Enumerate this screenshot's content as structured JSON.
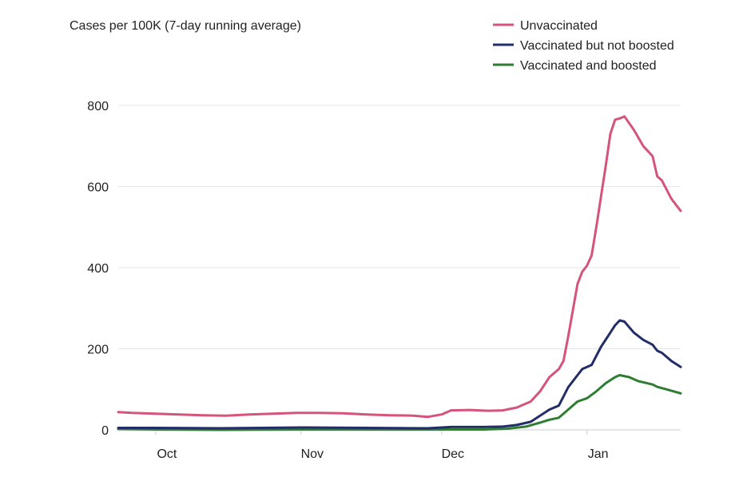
{
  "chart_data": {
    "type": "line",
    "title": "Cases per 100K (7-day running average)",
    "xlabel": "",
    "ylabel": "",
    "x_start": "2021-09-23",
    "x_end": "2022-01-21",
    "xticks": [
      {
        "label": "Oct",
        "date": "2021-10-01"
      },
      {
        "label": "Nov",
        "date": "2021-11-01"
      },
      {
        "label": "Dec",
        "date": "2021-12-01"
      },
      {
        "label": "Jan",
        "date": "2022-01-01"
      }
    ],
    "ylim": [
      0,
      800
    ],
    "yticks": [
      0,
      200,
      400,
      600,
      800
    ],
    "grid": "horizontal",
    "legend_position": "top-right",
    "series": [
      {
        "name": "Unvaccinated",
        "color": "#d4547c",
        "points": [
          [
            "2021-09-23",
            44
          ],
          [
            "2021-09-26",
            42
          ],
          [
            "2021-10-01",
            40
          ],
          [
            "2021-10-06",
            38
          ],
          [
            "2021-10-11",
            36
          ],
          [
            "2021-10-16",
            35
          ],
          [
            "2021-10-21",
            38
          ],
          [
            "2021-10-26",
            40
          ],
          [
            "2021-10-31",
            42
          ],
          [
            "2021-11-05",
            42
          ],
          [
            "2021-11-10",
            41
          ],
          [
            "2021-11-15",
            38
          ],
          [
            "2021-11-20",
            36
          ],
          [
            "2021-11-25",
            35
          ],
          [
            "2021-11-28",
            32
          ],
          [
            "2021-12-01",
            38
          ],
          [
            "2021-12-03",
            48
          ],
          [
            "2021-12-07",
            49
          ],
          [
            "2021-12-11",
            47
          ],
          [
            "2021-12-14",
            48
          ],
          [
            "2021-12-17",
            55
          ],
          [
            "2021-12-20",
            70
          ],
          [
            "2021-12-22",
            95
          ],
          [
            "2021-12-24",
            130
          ],
          [
            "2021-12-26",
            150
          ],
          [
            "2021-12-27",
            170
          ],
          [
            "2021-12-28",
            230
          ],
          [
            "2021-12-30",
            360
          ],
          [
            "2021-12-31",
            390
          ],
          [
            "2022-01-01",
            405
          ],
          [
            "2022-01-02",
            430
          ],
          [
            "2022-01-03",
            500
          ],
          [
            "2022-01-05",
            650
          ],
          [
            "2022-01-06",
            730
          ],
          [
            "2022-01-07",
            765
          ],
          [
            "2022-01-08",
            768
          ],
          [
            "2022-01-09",
            773
          ],
          [
            "2022-01-11",
            740
          ],
          [
            "2022-01-13",
            700
          ],
          [
            "2022-01-15",
            675
          ],
          [
            "2022-01-16",
            625
          ],
          [
            "2022-01-17",
            615
          ],
          [
            "2022-01-19",
            570
          ],
          [
            "2022-01-21",
            540
          ]
        ]
      },
      {
        "name": "Vaccinated but not boosted",
        "color": "#232e68",
        "points": [
          [
            "2021-09-23",
            5
          ],
          [
            "2021-10-01",
            5
          ],
          [
            "2021-10-15",
            4
          ],
          [
            "2021-11-01",
            6
          ],
          [
            "2021-11-15",
            5
          ],
          [
            "2021-11-28",
            4
          ],
          [
            "2021-12-03",
            7
          ],
          [
            "2021-12-10",
            7
          ],
          [
            "2021-12-14",
            8
          ],
          [
            "2021-12-17",
            12
          ],
          [
            "2021-12-20",
            20
          ],
          [
            "2021-12-22",
            35
          ],
          [
            "2021-12-24",
            50
          ],
          [
            "2021-12-26",
            60
          ],
          [
            "2021-12-28",
            105
          ],
          [
            "2021-12-30",
            135
          ],
          [
            "2021-12-31",
            150
          ],
          [
            "2022-01-02",
            160
          ],
          [
            "2022-01-04",
            205
          ],
          [
            "2022-01-06",
            240
          ],
          [
            "2022-01-07",
            258
          ],
          [
            "2022-01-08",
            270
          ],
          [
            "2022-01-09",
            267
          ],
          [
            "2022-01-11",
            240
          ],
          [
            "2022-01-13",
            222
          ],
          [
            "2022-01-15",
            210
          ],
          [
            "2022-01-16",
            195
          ],
          [
            "2022-01-17",
            190
          ],
          [
            "2022-01-19",
            170
          ],
          [
            "2022-01-21",
            155
          ]
        ]
      },
      {
        "name": "Vaccinated and boosted",
        "color": "#2e7d32",
        "points": [
          [
            "2021-09-23",
            2
          ],
          [
            "2021-10-01",
            1
          ],
          [
            "2021-10-15",
            0
          ],
          [
            "2021-11-01",
            1
          ],
          [
            "2021-11-15",
            1
          ],
          [
            "2021-12-01",
            1
          ],
          [
            "2021-12-10",
            1
          ],
          [
            "2021-12-15",
            3
          ],
          [
            "2021-12-19",
            8
          ],
          [
            "2021-12-22",
            18
          ],
          [
            "2021-12-24",
            25
          ],
          [
            "2021-12-26",
            30
          ],
          [
            "2021-12-28",
            50
          ],
          [
            "2021-12-30",
            70
          ],
          [
            "2022-01-01",
            78
          ],
          [
            "2022-01-03",
            95
          ],
          [
            "2022-01-05",
            115
          ],
          [
            "2022-01-07",
            130
          ],
          [
            "2022-01-08",
            135
          ],
          [
            "2022-01-10",
            130
          ],
          [
            "2022-01-12",
            120
          ],
          [
            "2022-01-15",
            112
          ],
          [
            "2022-01-16",
            106
          ],
          [
            "2022-01-18",
            100
          ],
          [
            "2022-01-21",
            90
          ]
        ]
      }
    ]
  }
}
